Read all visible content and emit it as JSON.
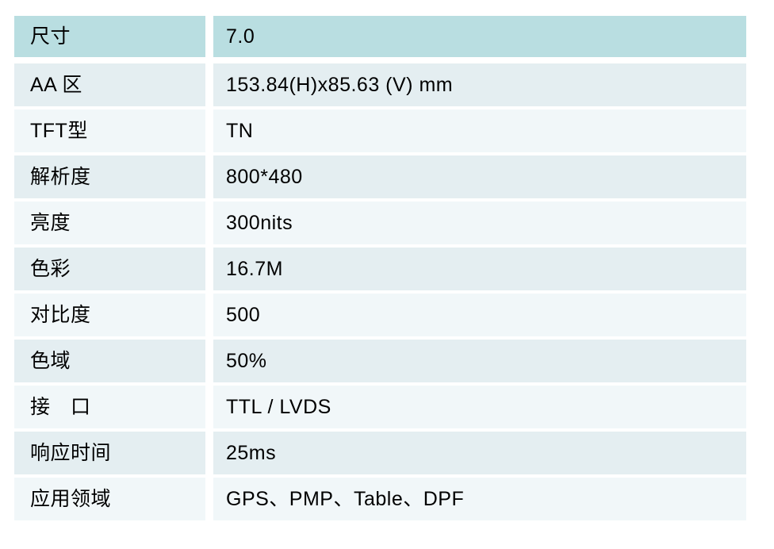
{
  "table": {
    "rows": [
      {
        "label": "尺寸",
        "value": "7.0"
      },
      {
        "label": "AA 区",
        "value": "153.84(H)x85.63 (V) mm"
      },
      {
        "label": "TFT型",
        "value": "TN"
      },
      {
        "label": "解析度",
        "value": "800*480"
      },
      {
        "label": "亮度",
        "value": "300nits"
      },
      {
        "label": "色彩",
        "value": "16.7M"
      },
      {
        "label": "对比度",
        "value": "500"
      },
      {
        "label": "色域",
        "value": "50%"
      },
      {
        "label": "接　口",
        "value": "TTL / LVDS"
      },
      {
        "label": "响应时间",
        "value": "25ms"
      },
      {
        "label": "应用领域",
        "value": "GPS、PMP、Table、DPF"
      }
    ]
  },
  "colors": {
    "page_bg": "#ffffff",
    "header_row_bg": "#b9dee1",
    "row_alt_dark": "#e4eef1",
    "row_alt_light": "#f1f7f9",
    "text": "#000000"
  }
}
